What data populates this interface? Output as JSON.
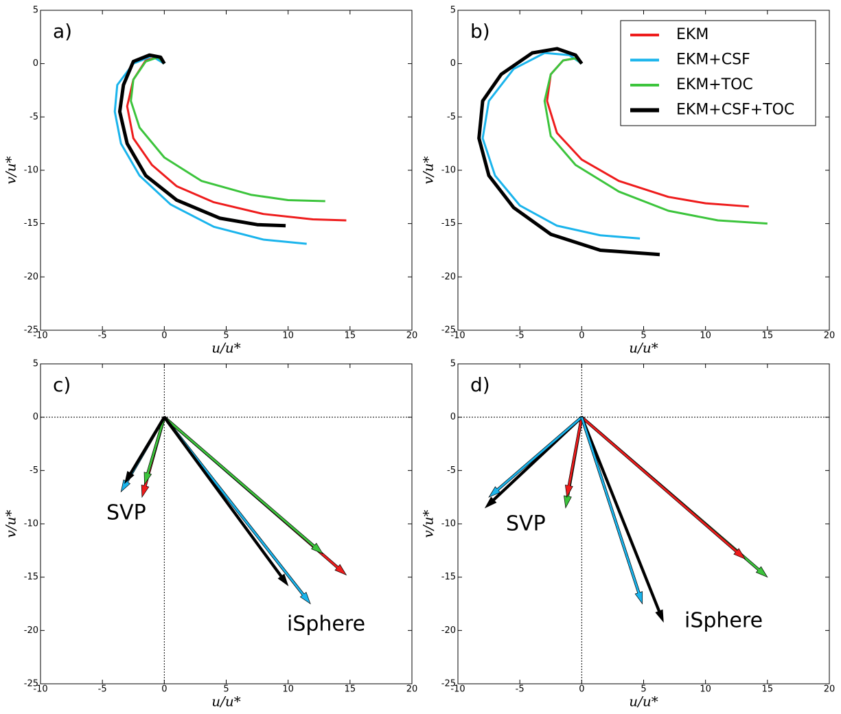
{
  "chart_data": [
    {
      "type": "line",
      "title": "a)",
      "xlabel": "u/u*",
      "ylabel": "v/u*",
      "xlim": [
        -10,
        20
      ],
      "ylim": [
        -25,
        5
      ],
      "xticks": [
        -10,
        -5,
        0,
        5,
        10,
        15,
        20
      ],
      "yticks": [
        -25,
        -20,
        -15,
        -10,
        -5,
        0,
        5
      ],
      "series": [
        {
          "color": "#ee1c1c",
          "linewidth": 3,
          "x": [
            0,
            -0.5,
            -1.5,
            -2.5,
            -3,
            -2.5,
            -1,
            1,
            4,
            8,
            12,
            14.7
          ],
          "values": [
            0,
            0.6,
            0.3,
            -1.5,
            -4,
            -7,
            -9.5,
            -11.5,
            -13,
            -14.1,
            -14.6,
            -14.7
          ]
        },
        {
          "color": "#1ab4ec",
          "linewidth": 3,
          "x": [
            0,
            -1,
            -2.5,
            -3.8,
            -4,
            -3.5,
            -2,
            0.5,
            4,
            8,
            11.5
          ],
          "values": [
            0,
            0.7,
            0,
            -2,
            -4.5,
            -7.5,
            -10.5,
            -13.2,
            -15.3,
            -16.5,
            -16.9
          ]
        },
        {
          "color": "#3cc43c",
          "linewidth": 3,
          "x": [
            0,
            -0.5,
            -1.5,
            -2.5,
            -2.7,
            -2,
            0,
            3,
            7,
            10,
            13
          ],
          "values": [
            0,
            0.6,
            0.2,
            -1.5,
            -3.5,
            -6,
            -8.8,
            -11,
            -12.3,
            -12.8,
            -12.9
          ]
        },
        {
          "color": "#000000",
          "linewidth": 5,
          "x": [
            0,
            -0.3,
            -1.2,
            -2.5,
            -3.3,
            -3.6,
            -3,
            -1.5,
            1,
            4.5,
            7.5,
            9.8
          ],
          "values": [
            0,
            0.6,
            0.8,
            0.2,
            -2,
            -4.5,
            -7.5,
            -10.5,
            -12.8,
            -14.5,
            -15.1,
            -15.2
          ]
        }
      ]
    },
    {
      "type": "line",
      "title": "b)",
      "xlabel": "u/u*",
      "ylabel": "v/u*",
      "xlim": [
        -10,
        20
      ],
      "ylim": [
        -25,
        5
      ],
      "xticks": [
        -10,
        -5,
        0,
        5,
        10,
        15,
        20
      ],
      "yticks": [
        -25,
        -20,
        -15,
        -10,
        -5,
        0,
        5
      ],
      "legend": "upper right",
      "series": [
        {
          "name": "EKM",
          "color": "#ee1c1c",
          "linewidth": 3,
          "x": [
            0,
            -0.5,
            -1.5,
            -2.5,
            -2.8,
            -2,
            0,
            3,
            7,
            10,
            13.5
          ],
          "values": [
            0,
            0.5,
            0.3,
            -1,
            -3.5,
            -6.5,
            -9,
            -11,
            -12.5,
            -13.1,
            -13.4
          ]
        },
        {
          "name": "EKM+CSF",
          "color": "#1ab4ec",
          "linewidth": 3,
          "x": [
            0,
            -1,
            -3,
            -5.5,
            -7.5,
            -8,
            -7,
            -5,
            -2,
            1.5,
            4.7
          ],
          "values": [
            0,
            0.8,
            1,
            -0.5,
            -3.5,
            -7,
            -10.5,
            -13.3,
            -15.2,
            -16.1,
            -16.4
          ]
        },
        {
          "name": "EKM+TOC",
          "color": "#3cc43c",
          "linewidth": 3,
          "x": [
            0,
            -0.5,
            -1.5,
            -2.5,
            -3,
            -2.5,
            -0.5,
            3,
            7,
            11,
            15
          ],
          "values": [
            0,
            0.5,
            0.3,
            -1,
            -3.5,
            -6.8,
            -9.5,
            -12,
            -13.8,
            -14.7,
            -15
          ]
        },
        {
          "name": "EKM+CSF+TOC",
          "color": "#000000",
          "linewidth": 5,
          "x": [
            0,
            -0.5,
            -2,
            -4,
            -6.5,
            -8,
            -8.3,
            -7.5,
            -5.5,
            -2.5,
            1.5,
            6.3
          ],
          "values": [
            0,
            0.8,
            1.4,
            1,
            -1,
            -3.5,
            -7,
            -10.5,
            -13.5,
            -16,
            -17.5,
            -17.9
          ]
        }
      ]
    },
    {
      "type": "quiver",
      "title": "c)",
      "xlabel": "u/u*",
      "ylabel": "v/u*",
      "zero_lines": true,
      "xlim": [
        -10,
        20
      ],
      "ylim": [
        -25,
        5
      ],
      "xticks": [
        -10,
        -5,
        0,
        5,
        10,
        15,
        20
      ],
      "yticks": [
        -25,
        -20,
        -15,
        -10,
        -5,
        0,
        5
      ],
      "annotations": [
        "SVP",
        "iSphere"
      ],
      "series": [
        {
          "color": "#ee1c1c",
          "x": [
            -1.8,
            14.7
          ],
          "values": [
            -7.5,
            -14.8
          ]
        },
        {
          "color": "#3cc43c",
          "x": [
            -1.6,
            12.8
          ],
          "values": [
            -6.3,
            -12.8
          ]
        },
        {
          "color": "#1ab4ec",
          "x": [
            -3.5,
            11.8
          ],
          "values": [
            -7,
            -17.5
          ]
        },
        {
          "color": "#000000",
          "x": [
            -3.2,
            10
          ],
          "values": [
            -6.2,
            -15.8
          ]
        }
      ]
    },
    {
      "type": "quiver",
      "title": "d)",
      "xlabel": "u/u*",
      "ylabel": "v/u*",
      "zero_lines": true,
      "xlim": [
        -10,
        20
      ],
      "ylim": [
        -25,
        5
      ],
      "xticks": [
        -10,
        -5,
        0,
        5,
        10,
        15,
        20
      ],
      "yticks": [
        -25,
        -20,
        -15,
        -10,
        -5,
        0,
        5
      ],
      "annotations": [
        "SVP",
        "iSphere"
      ],
      "series": [
        {
          "color": "#3cc43c",
          "x": [
            -1.3,
            15
          ],
          "values": [
            -8.5,
            -15
          ]
        },
        {
          "color": "#ee1c1c",
          "x": [
            -1.2,
            13.2
          ],
          "values": [
            -7.5,
            -13.3
          ]
        },
        {
          "color": "#000000",
          "x": [
            -7.8,
            6.6
          ],
          "values": [
            -8.5,
            -19.2
          ]
        },
        {
          "color": "#1ab4ec",
          "x": [
            -7.5,
            4.9
          ],
          "values": [
            -7.5,
            -17.5
          ]
        }
      ]
    }
  ]
}
